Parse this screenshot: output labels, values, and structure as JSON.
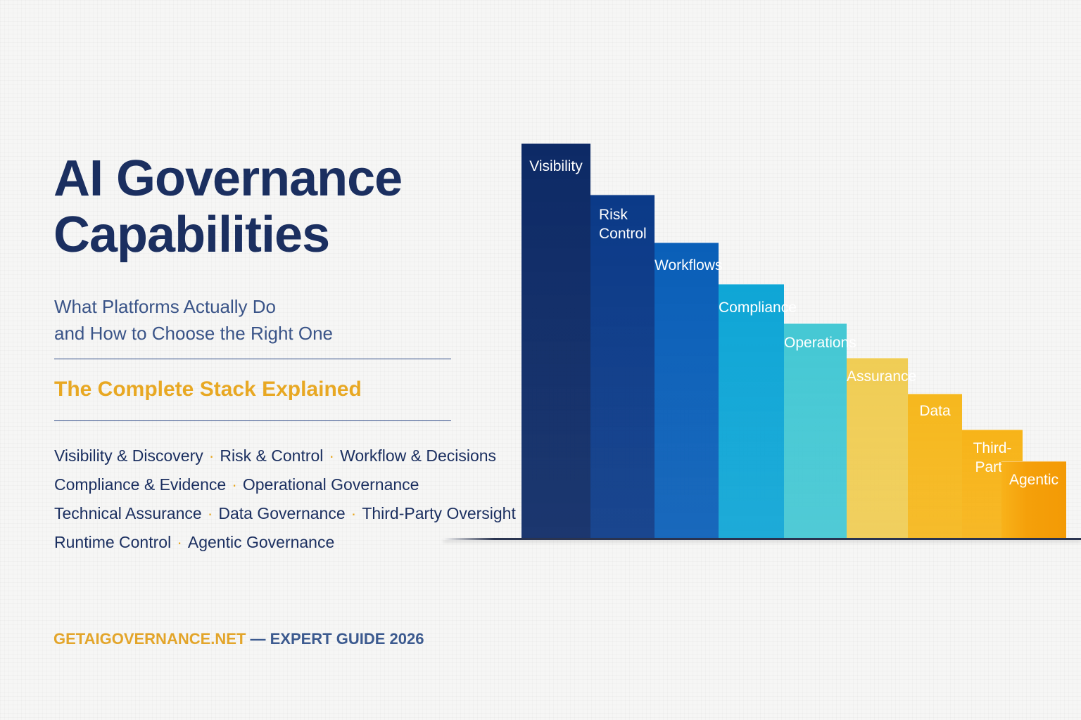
{
  "header": {
    "title_line1": "AI Governance",
    "title_line2": "Capabilities",
    "subtitle_line1": "What Platforms Actually Do",
    "subtitle_line2": "and How to Choose the Right One",
    "tagline": "The Complete Stack Explained"
  },
  "capabilities": {
    "separator": "·",
    "rows": [
      [
        "Visibility & Discovery",
        "Risk & Control",
        "Workflow & Decisions"
      ],
      [
        "Compliance & Evidence",
        "Operational Governance"
      ],
      [
        "Technical Assurance",
        "Data Governance",
        "Third-Party Oversight"
      ],
      [
        "Runtime Control",
        "Agentic Governance"
      ]
    ]
  },
  "footer": {
    "site": "GETAIGOVERNANCE.NET",
    "rest": " — EXPERT GUIDE 2026"
  },
  "stack": {
    "bars": [
      {
        "label_line1": "Visibility",
        "label_line2": "",
        "color": "#0d2a66"
      },
      {
        "label_line1": "Risk",
        "label_line2": "Control",
        "color": "#0b3a88"
      },
      {
        "label_line1": "Workflows",
        "label_line2": "",
        "color": "#0a5fb8"
      },
      {
        "label_line1": "Compliance",
        "label_line2": "",
        "color": "#0fa6d6"
      },
      {
        "label_line1": "Operations",
        "label_line2": "",
        "color": "#45c8d4"
      },
      {
        "label_line1": "Assurance",
        "label_line2": "",
        "color": "#f0cd55"
      },
      {
        "label_line1": "Data",
        "label_line2": "",
        "color": "#f6b81e"
      },
      {
        "label_line1": "Third-Party",
        "label_line2": "",
        "color": "#f7b419"
      },
      {
        "label_line1": "Agentic",
        "label_line2": "",
        "color": "#f5a20c"
      }
    ]
  },
  "colors": {
    "navy": "#1b2f60",
    "accent": "#e8a823"
  }
}
